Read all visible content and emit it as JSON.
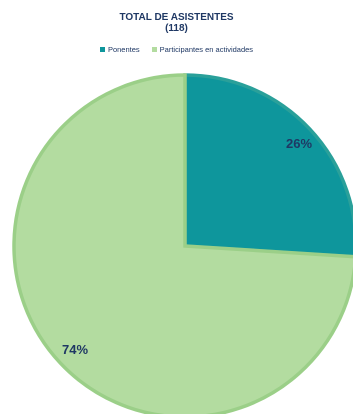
{
  "chart_data": {
    "type": "pie",
    "title": "TOTAL DE ASISTENTES",
    "subtitle": "(118)",
    "legend_position": "top",
    "categories": [
      "Ponentes",
      "Participantes en actividades"
    ],
    "values": [
      26,
      74
    ],
    "data_labels": [
      "26%",
      "74%"
    ],
    "colors": [
      "#0e969c",
      "#b3dca0"
    ],
    "border_colors": [
      "#2aa09a",
      "#9bcf88"
    ]
  }
}
